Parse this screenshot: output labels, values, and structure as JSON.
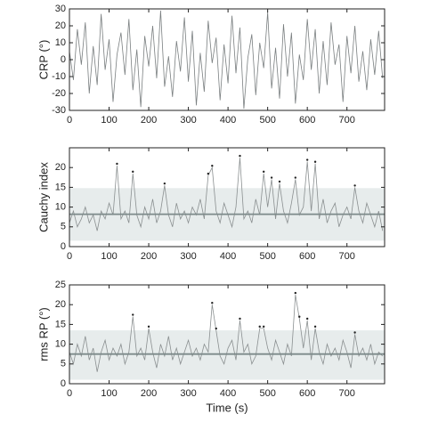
{
  "chart_data": [
    {
      "type": "line",
      "ylabel": "CRP (°)",
      "color": "#7a7f80",
      "x": [
        0,
        10,
        20,
        30,
        40,
        50,
        60,
        70,
        80,
        90,
        100,
        110,
        120,
        130,
        140,
        150,
        160,
        170,
        180,
        190,
        200,
        210,
        220,
        230,
        240,
        250,
        260,
        270,
        280,
        290,
        300,
        310,
        320,
        330,
        340,
        350,
        360,
        370,
        380,
        390,
        400,
        410,
        420,
        430,
        440,
        450,
        460,
        470,
        480,
        490,
        500,
        510,
        520,
        530,
        540,
        550,
        560,
        570,
        580,
        590,
        600,
        610,
        620,
        630,
        640,
        650,
        660,
        670,
        680,
        690,
        700,
        710,
        720,
        730,
        740,
        750,
        760,
        770,
        780,
        790
      ],
      "values": [
        5,
        -12,
        18,
        -3,
        22,
        -20,
        8,
        -15,
        27,
        -6,
        12,
        -25,
        3,
        16,
        -9,
        24,
        -18,
        6,
        -28,
        14,
        -4,
        20,
        -11,
        29,
        -16,
        2,
        -22,
        11,
        -7,
        25,
        -13,
        17,
        -27,
        4,
        -19,
        23,
        -2,
        13,
        -24,
        9,
        -14,
        26,
        -8,
        19,
        -29,
        1,
        15,
        -21,
        10,
        -5,
        28,
        -17,
        7,
        -23,
        21,
        -10,
        16,
        -26,
        3,
        -12,
        24,
        -6,
        18,
        -20,
        11,
        -15,
        22,
        -3,
        9,
        -25,
        14,
        -8,
        20,
        -13,
        5,
        -18,
        12,
        -9,
        17,
        -11
      ],
      "xlim": [
        0,
        795
      ],
      "xticks": [
        0,
        100,
        200,
        300,
        400,
        500,
        600,
        700
      ],
      "ylim": [
        -30,
        30
      ],
      "yticks": [
        -30,
        -20,
        -10,
        0,
        10,
        20,
        30
      ]
    },
    {
      "type": "line",
      "ylabel": "Cauchy index",
      "color": "#8a8f90",
      "x": [
        0,
        10,
        20,
        30,
        40,
        50,
        60,
        70,
        80,
        90,
        100,
        110,
        120,
        130,
        140,
        150,
        160,
        170,
        180,
        190,
        200,
        210,
        220,
        230,
        240,
        250,
        260,
        270,
        280,
        290,
        300,
        310,
        320,
        330,
        340,
        350,
        360,
        370,
        380,
        390,
        400,
        410,
        420,
        430,
        440,
        450,
        460,
        470,
        480,
        490,
        500,
        510,
        520,
        530,
        540,
        550,
        560,
        570,
        580,
        590,
        600,
        610,
        620,
        630,
        640,
        650,
        660,
        670,
        680,
        690,
        700,
        710,
        720,
        730,
        740,
        750,
        760,
        770,
        780,
        790
      ],
      "values": [
        6,
        9,
        5,
        7,
        10,
        6,
        8,
        4,
        9,
        7,
        11,
        8,
        20.5,
        7,
        9,
        6,
        18.5,
        8,
        5,
        10,
        7,
        12,
        6,
        9,
        15.5,
        8,
        5,
        11,
        7,
        9,
        6,
        10,
        8,
        12,
        7,
        18,
        20,
        9,
        6,
        11,
        8,
        5,
        10,
        22.5,
        7,
        9,
        6,
        12,
        8,
        18.5,
        10,
        17,
        7,
        16,
        9,
        6,
        11,
        17,
        8,
        10,
        21.5,
        9,
        21,
        7,
        12,
        6,
        9,
        11,
        5,
        8,
        10,
        7,
        15,
        9,
        6,
        11,
        8,
        5,
        9,
        4
      ],
      "peaks": {
        "x": [
          120,
          160,
          240,
          350,
          360,
          430,
          490,
          510,
          530,
          570,
          600,
          620,
          720
        ],
        "values": [
          20.5,
          18.5,
          15.5,
          18,
          20,
          22.5,
          18.5,
          17,
          16,
          17,
          21.5,
          21,
          15
        ]
      },
      "band": [
        1.5,
        14.8
      ],
      "mean": 8.2,
      "xlim": [
        0,
        795
      ],
      "xticks": [
        0,
        100,
        200,
        300,
        400,
        500,
        600,
        700
      ],
      "ylim": [
        0,
        25
      ],
      "yticks": [
        0,
        5,
        10,
        15,
        20
      ]
    },
    {
      "type": "line",
      "ylabel": "rms RP (°)",
      "xlabel": "Time (s)",
      "color": "#8a8f90",
      "x": [
        0,
        10,
        20,
        30,
        40,
        50,
        60,
        70,
        80,
        90,
        100,
        110,
        120,
        130,
        140,
        150,
        160,
        170,
        180,
        190,
        200,
        210,
        220,
        230,
        240,
        250,
        260,
        270,
        280,
        290,
        300,
        310,
        320,
        330,
        340,
        350,
        360,
        370,
        380,
        390,
        400,
        410,
        420,
        430,
        440,
        450,
        460,
        470,
        480,
        490,
        500,
        510,
        520,
        530,
        540,
        550,
        560,
        570,
        580,
        590,
        600,
        610,
        620,
        630,
        640,
        650,
        660,
        670,
        680,
        690,
        700,
        710,
        720,
        730,
        740,
        750,
        760,
        770,
        780,
        790
      ],
      "values": [
        8,
        5,
        10,
        7,
        12,
        6,
        9,
        3,
        8,
        11,
        6,
        9,
        7,
        10,
        5,
        8,
        17,
        7,
        9,
        6,
        14,
        8,
        4,
        10,
        7,
        12,
        6,
        9,
        5,
        8,
        11,
        7,
        9,
        6,
        10,
        8,
        20,
        13.5,
        7,
        5,
        9,
        11,
        6,
        16,
        8,
        10,
        5,
        7,
        14,
        14,
        9,
        6,
        11,
        8,
        5,
        10,
        7,
        22.5,
        16.5,
        9,
        16,
        6,
        14,
        8,
        5,
        10,
        7,
        9,
        6,
        11,
        8,
        4,
        12.5,
        7,
        9,
        6,
        10,
        5,
        8,
        7
      ],
      "peaks": {
        "x": [
          160,
          200,
          360,
          370,
          430,
          480,
          490,
          570,
          580,
          600,
          620,
          720
        ],
        "values": [
          17,
          14,
          20,
          13.5,
          16,
          14,
          14,
          22.5,
          16.5,
          16,
          14,
          12.5
        ]
      },
      "band": [
        1,
        13.5
      ],
      "mean": 7.5,
      "xlim": [
        0,
        795
      ],
      "xticks": [
        0,
        100,
        200,
        300,
        400,
        500,
        600,
        700
      ],
      "ylim": [
        0,
        25
      ],
      "yticks": [
        0,
        5,
        10,
        15,
        20,
        25
      ]
    }
  ]
}
